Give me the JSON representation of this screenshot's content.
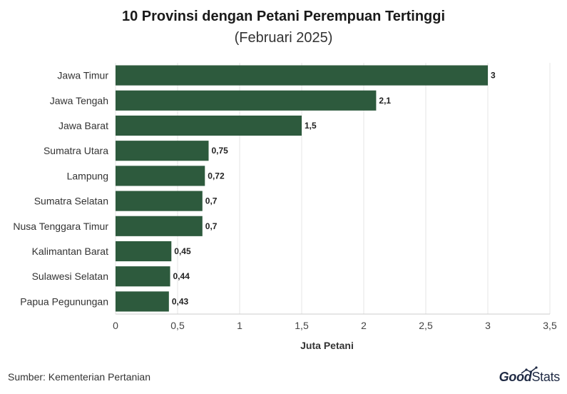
{
  "chart_data": {
    "type": "bar",
    "orientation": "horizontal",
    "title": "10 Provinsi dengan Petani Perempuan Tertinggi",
    "subtitle": "(Februari 2025)",
    "xlabel": "Juta Petani",
    "ylabel": "",
    "categories": [
      "Jawa Timur",
      "Jawa Tengah",
      "Jawa Barat",
      "Sumatra Utara",
      "Lampung",
      "Sumatra Selatan",
      "Nusa Tenggara Timur",
      "Kalimantan Barat",
      "Sulawesi Selatan",
      "Papua Pegunungan"
    ],
    "values": [
      3,
      2.1,
      1.5,
      0.75,
      0.72,
      0.7,
      0.7,
      0.45,
      0.44,
      0.43
    ],
    "value_labels": [
      "3",
      "2,1",
      "1,5",
      "0,75",
      "0,72",
      "0,7",
      "0,7",
      "0,45",
      "0,44",
      "0,43"
    ],
    "xlim": [
      0,
      3.5
    ],
    "xticks": [
      0,
      0.5,
      1,
      1.5,
      2,
      2.5,
      3,
      3.5
    ],
    "xtick_labels": [
      "0",
      "0,5",
      "1",
      "1,5",
      "2",
      "2,5",
      "3",
      "3,5"
    ],
    "grid": true,
    "bar_color": "#2d5a3d"
  },
  "footer": {
    "source": "Sumber: Kementerian Pertanian",
    "logo_good": "Good",
    "logo_stats": "Stats"
  }
}
